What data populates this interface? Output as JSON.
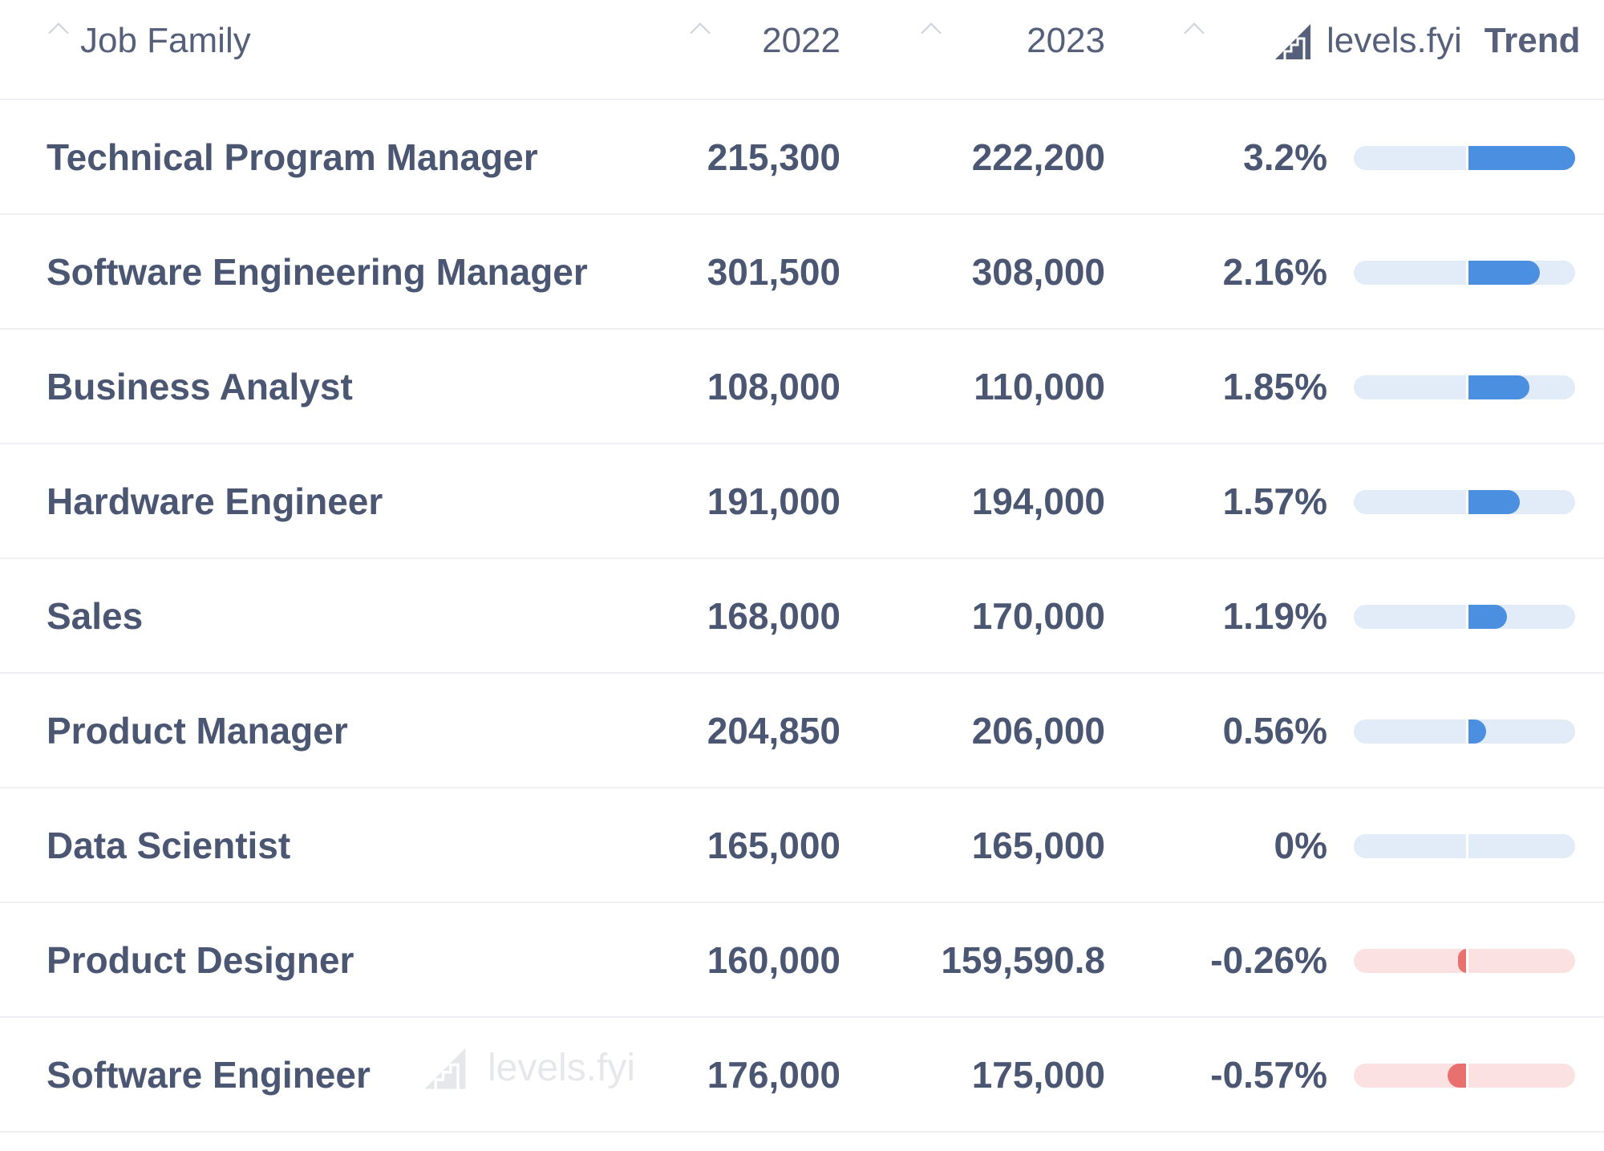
{
  "header": {
    "job_family": "Job Family",
    "year1": "2022",
    "year2": "2023",
    "logo_text": "levels.fyi",
    "trend": "Trend"
  },
  "watermark": "levels.fyi",
  "colors": {
    "positive_fill": "#4a8fe0",
    "positive_track": "#e1ecf8",
    "negative_fill": "#e8706e",
    "negative_track": "#fbe1e1",
    "text": "#4a5672"
  },
  "chart_data": {
    "type": "table",
    "columns": [
      "Job Family",
      "2022",
      "2023",
      "Trend"
    ],
    "rows": [
      {
        "name": "Technical Program Manager",
        "v2022": "215,300",
        "v2023": "222,200",
        "pct_label": "3.2%",
        "pct": 3.2
      },
      {
        "name": "Software Engineering Manager",
        "v2022": "301,500",
        "v2023": "308,000",
        "pct_label": "2.16%",
        "pct": 2.16
      },
      {
        "name": "Business Analyst",
        "v2022": "108,000",
        "v2023": "110,000",
        "pct_label": "1.85%",
        "pct": 1.85
      },
      {
        "name": "Hardware Engineer",
        "v2022": "191,000",
        "v2023": "194,000",
        "pct_label": "1.57%",
        "pct": 1.57
      },
      {
        "name": "Sales",
        "v2022": "168,000",
        "v2023": "170,000",
        "pct_label": "1.19%",
        "pct": 1.19
      },
      {
        "name": "Product Manager",
        "v2022": "204,850",
        "v2023": "206,000",
        "pct_label": "0.56%",
        "pct": 0.56
      },
      {
        "name": "Data Scientist",
        "v2022": "165,000",
        "v2023": "165,000",
        "pct_label": "0%",
        "pct": 0
      },
      {
        "name": "Product Designer",
        "v2022": "160,000",
        "v2023": "159,590.8",
        "pct_label": "-0.26%",
        "pct": -0.26
      },
      {
        "name": "Software Engineer",
        "v2022": "176,000",
        "v2023": "175,000",
        "pct_label": "-0.57%",
        "pct": -0.57
      }
    ],
    "trend_scale": {
      "min": -3.2,
      "max": 3.2
    }
  }
}
